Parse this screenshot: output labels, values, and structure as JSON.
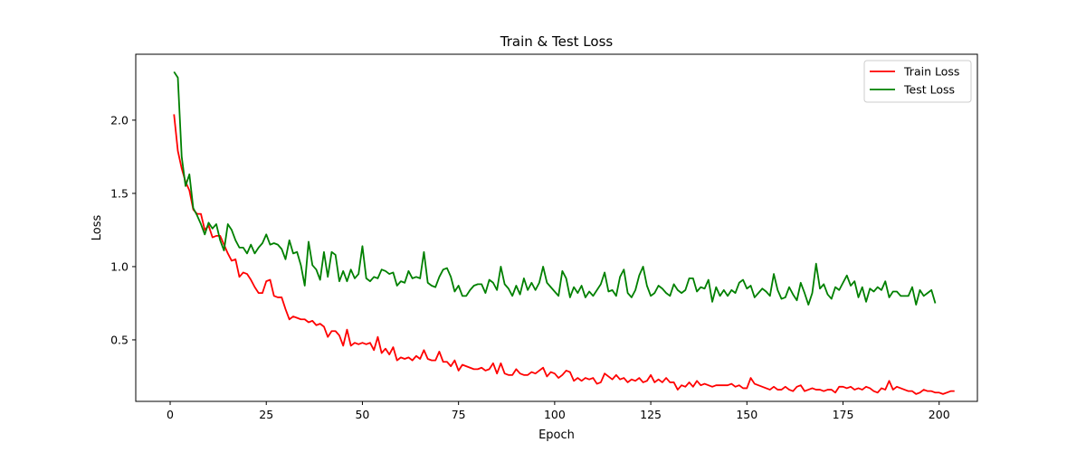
{
  "chart_data": {
    "type": "line",
    "title": "Train & Test Loss",
    "xlabel": "Epoch",
    "ylabel": "Loss",
    "xlim": [
      -8.95,
      209.95
    ],
    "ylim": [
      0.08,
      2.45
    ],
    "xticks": [
      0,
      25,
      50,
      75,
      100,
      125,
      150,
      175,
      200
    ],
    "yticks": [
      0.5,
      1.0,
      1.5,
      2.0
    ],
    "ytick_labels": [
      "0.5",
      "1.0",
      "1.5",
      "2.0"
    ],
    "grid": false,
    "legend_position": "top-right",
    "x_start": 1,
    "x_end": 200,
    "series": [
      {
        "name": "Train Loss",
        "color": "#ff0000",
        "values": [
          2.04,
          1.79,
          1.67,
          1.58,
          1.52,
          1.39,
          1.36,
          1.36,
          1.25,
          1.28,
          1.2,
          1.21,
          1.21,
          1.15,
          1.09,
          1.04,
          1.05,
          0.93,
          0.96,
          0.95,
          0.91,
          0.86,
          0.82,
          0.82,
          0.9,
          0.91,
          0.8,
          0.79,
          0.79,
          0.71,
          0.64,
          0.66,
          0.65,
          0.64,
          0.64,
          0.62,
          0.63,
          0.6,
          0.61,
          0.59,
          0.52,
          0.56,
          0.56,
          0.53,
          0.46,
          0.57,
          0.46,
          0.48,
          0.47,
          0.48,
          0.47,
          0.48,
          0.43,
          0.52,
          0.41,
          0.44,
          0.4,
          0.45,
          0.36,
          0.38,
          0.37,
          0.38,
          0.36,
          0.39,
          0.37,
          0.43,
          0.37,
          0.36,
          0.36,
          0.42,
          0.35,
          0.35,
          0.32,
          0.36,
          0.29,
          0.33,
          0.32,
          0.31,
          0.3,
          0.3,
          0.31,
          0.29,
          0.3,
          0.34,
          0.27,
          0.34,
          0.27,
          0.26,
          0.26,
          0.3,
          0.27,
          0.26,
          0.26,
          0.28,
          0.27,
          0.29,
          0.31,
          0.25,
          0.28,
          0.27,
          0.24,
          0.26,
          0.29,
          0.28,
          0.22,
          0.24,
          0.22,
          0.24,
          0.23,
          0.24,
          0.2,
          0.21,
          0.27,
          0.25,
          0.23,
          0.26,
          0.23,
          0.24,
          0.21,
          0.23,
          0.22,
          0.24,
          0.21,
          0.22,
          0.26,
          0.21,
          0.23,
          0.21,
          0.24,
          0.21,
          0.21,
          0.16,
          0.19,
          0.18,
          0.21,
          0.18,
          0.22,
          0.19,
          0.2,
          0.19,
          0.18,
          0.19,
          0.19,
          0.19,
          0.19,
          0.2,
          0.18,
          0.19,
          0.17,
          0.17,
          0.24,
          0.2,
          0.19,
          0.18,
          0.17,
          0.16,
          0.18,
          0.16,
          0.16,
          0.18,
          0.16,
          0.15,
          0.18,
          0.19,
          0.15,
          0.16,
          0.17,
          0.16,
          0.16,
          0.15,
          0.16,
          0.16,
          0.14,
          0.18,
          0.18,
          0.17,
          0.18,
          0.16,
          0.17,
          0.16,
          0.18,
          0.17,
          0.15,
          0.14,
          0.17,
          0.16,
          0.22,
          0.16,
          0.18,
          0.17,
          0.16,
          0.15,
          0.15,
          0.13,
          0.14,
          0.16,
          0.15,
          0.15,
          0.14,
          0.14,
          0.13,
          0.14,
          0.15,
          0.15
        ]
      },
      {
        "name": "Test Loss",
        "color": "#008000",
        "values": [
          2.33,
          2.29,
          1.75,
          1.55,
          1.63,
          1.4,
          1.35,
          1.29,
          1.22,
          1.3,
          1.26,
          1.29,
          1.18,
          1.11,
          1.29,
          1.25,
          1.18,
          1.13,
          1.13,
          1.09,
          1.15,
          1.09,
          1.13,
          1.16,
          1.22,
          1.15,
          1.16,
          1.15,
          1.12,
          1.05,
          1.18,
          1.09,
          1.1,
          1.01,
          0.87,
          1.17,
          1.01,
          0.98,
          0.91,
          1.1,
          0.93,
          1.1,
          1.08,
          0.9,
          0.97,
          0.9,
          0.98,
          0.92,
          0.95,
          1.14,
          0.92,
          0.9,
          0.93,
          0.92,
          0.98,
          0.97,
          0.95,
          0.96,
          0.87,
          0.9,
          0.89,
          0.97,
          0.92,
          0.93,
          0.92,
          1.1,
          0.89,
          0.87,
          0.86,
          0.93,
          0.98,
          0.99,
          0.93,
          0.83,
          0.87,
          0.8,
          0.8,
          0.84,
          0.87,
          0.88,
          0.88,
          0.82,
          0.91,
          0.89,
          0.84,
          1.0,
          0.88,
          0.85,
          0.8,
          0.87,
          0.81,
          0.92,
          0.84,
          0.89,
          0.84,
          0.89,
          1.0,
          0.89,
          0.86,
          0.83,
          0.8,
          0.97,
          0.92,
          0.79,
          0.86,
          0.82,
          0.87,
          0.79,
          0.83,
          0.8,
          0.84,
          0.88,
          0.96,
          0.83,
          0.84,
          0.8,
          0.93,
          0.98,
          0.82,
          0.79,
          0.84,
          0.94,
          1.0,
          0.87,
          0.8,
          0.82,
          0.87,
          0.85,
          0.82,
          0.8,
          0.88,
          0.84,
          0.82,
          0.84,
          0.92,
          0.92,
          0.83,
          0.86,
          0.85,
          0.91,
          0.76,
          0.86,
          0.8,
          0.84,
          0.8,
          0.84,
          0.82,
          0.89,
          0.91,
          0.85,
          0.87,
          0.79,
          0.82,
          0.85,
          0.83,
          0.8,
          0.95,
          0.84,
          0.78,
          0.79,
          0.86,
          0.81,
          0.77,
          0.89,
          0.82,
          0.74,
          0.82,
          1.02,
          0.85,
          0.88,
          0.81,
          0.78,
          0.86,
          0.84,
          0.89,
          0.94,
          0.87,
          0.9,
          0.79,
          0.86,
          0.76,
          0.85,
          0.83,
          0.86,
          0.84,
          0.9,
          0.79,
          0.83,
          0.83,
          0.8,
          0.8,
          0.8,
          0.86,
          0.74,
          0.84,
          0.8,
          0.82,
          0.84,
          0.75
        ]
      }
    ]
  }
}
